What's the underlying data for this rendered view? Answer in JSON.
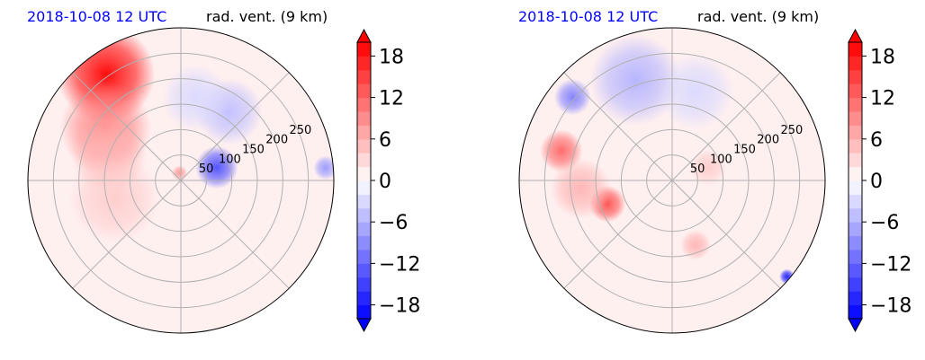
{
  "chart_data": [
    {
      "type": "heatmap",
      "projection": "polar",
      "date": "2018-10-08 12 UTC",
      "title": "rad. vent. (9 km)",
      "radial_ticks": [
        50,
        100,
        150,
        200,
        250
      ],
      "colorbar": {
        "ticks": [
          18,
          12,
          6,
          0,
          -6,
          -12,
          -18
        ],
        "min": -20,
        "max": 20,
        "extend": "both"
      },
      "colors": {
        "positive": "#ff0000",
        "negative": "#0000ff",
        "zero": "#ffffff",
        "date_color": "#0000ff"
      },
      "features": [
        {
          "theta": 125,
          "r": 0.85,
          "value": 20,
          "spread": 0.32
        },
        {
          "theta": 145,
          "r": 0.6,
          "value": 10,
          "spread": 0.3
        },
        {
          "theta": 160,
          "r": 0.5,
          "value": 6,
          "spread": 0.25
        },
        {
          "theta": 195,
          "r": 0.45,
          "value": 4,
          "spread": 0.3
        },
        {
          "theta": 20,
          "r": 0.25,
          "value": -14,
          "spread": 0.14
        },
        {
          "theta": 55,
          "r": 0.55,
          "value": -5,
          "spread": 0.22
        },
        {
          "theta": 80,
          "r": 0.55,
          "value": -3,
          "spread": 0.22
        },
        {
          "theta": 5,
          "r": 0.95,
          "value": -8,
          "spread": 0.08
        },
        {
          "theta": 100,
          "r": 0.05,
          "value": 8,
          "spread": 0.05
        }
      ]
    },
    {
      "type": "heatmap",
      "projection": "polar",
      "date": "2018-10-08 12 UTC",
      "title": "rad. vent. (9 km)",
      "radial_ticks": [
        50,
        100,
        150,
        200,
        250
      ],
      "colorbar": {
        "ticks": [
          18,
          12,
          6,
          0,
          -6,
          -12,
          -18
        ],
        "min": -20,
        "max": 20,
        "extend": "both"
      },
      "colors": {
        "positive": "#ff0000",
        "negative": "#0000ff",
        "zero": "#ffffff",
        "date_color": "#0000ff"
      },
      "features": [
        {
          "theta": 165,
          "r": 0.75,
          "value": 12,
          "spread": 0.14
        },
        {
          "theta": 200,
          "r": 0.45,
          "value": 14,
          "spread": 0.12
        },
        {
          "theta": 185,
          "r": 0.6,
          "value": 6,
          "spread": 0.2
        },
        {
          "theta": 110,
          "r": 0.7,
          "value": -6,
          "spread": 0.3
        },
        {
          "theta": 75,
          "r": 0.6,
          "value": -3,
          "spread": 0.25
        },
        {
          "theta": 140,
          "r": 0.85,
          "value": -10,
          "spread": 0.12
        },
        {
          "theta": 290,
          "r": 0.45,
          "value": 6,
          "spread": 0.1
        },
        {
          "theta": 20,
          "r": 0.25,
          "value": 4,
          "spread": 0.12
        },
        {
          "theta": 320,
          "r": 0.98,
          "value": -18,
          "spread": 0.05
        }
      ]
    }
  ]
}
